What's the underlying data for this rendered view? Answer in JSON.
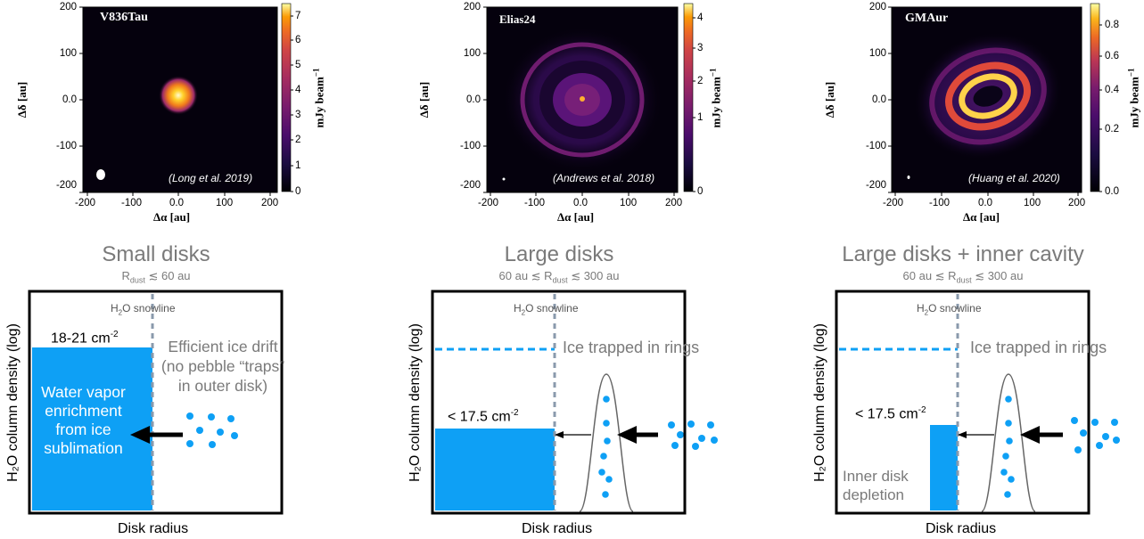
{
  "panels": [
    {
      "image_label": "V836Tau",
      "citation": "(Long et al. 2019)",
      "colorbar_ticks": [
        "7",
        "6",
        "5",
        "4",
        "3",
        "2",
        "1",
        "0"
      ],
      "colorbar_label": "mJy beam",
      "colorbar_exp": "−1",
      "x_ticks": [
        "-200",
        "-100",
        "0.0",
        "100",
        "200"
      ],
      "y_ticks": [
        "200",
        "100",
        "0.0",
        "-100",
        "-200"
      ],
      "x_label": "Δα [au]",
      "y_label": "Δδ [au]",
      "title": "Small disks",
      "subtitle": "R",
      "subtitle_sub": "dust",
      "subtitle_tail": " ≲ 60 au",
      "snowline_label": "H",
      "snowline_sub": "2",
      "snowline_tail": "O snowline",
      "density_label": "18-21 cm",
      "density_exp": "-2",
      "annotation_lines": [
        "Efficient ice drift",
        "(no pebble “traps”",
        "in outer disk)"
      ],
      "box_text_lines": [
        "Water vapor",
        "enrichment",
        "from ice",
        "sublimation"
      ],
      "y_axis_label": "H₂O column density (log)",
      "x_axis_label": "Disk radius"
    },
    {
      "image_label": "Elias24",
      "citation": "(Andrews et al. 2018)",
      "colorbar_ticks": [
        "4",
        "3",
        "2",
        "1",
        "0"
      ],
      "colorbar_label": "mJy beam",
      "colorbar_exp": "−1",
      "x_ticks": [
        "-200",
        "-100",
        "0.0",
        "100",
        "200"
      ],
      "y_ticks": [
        "200",
        "100",
        "0.0",
        "-100",
        "-200"
      ],
      "x_label": "Δα [au]",
      "y_label": "Δδ [au]",
      "title": "Large disks",
      "subtitle": "60 au ≲ R",
      "subtitle_sub": "dust",
      "subtitle_tail": " ≲ 300 au",
      "snowline_label": "H",
      "snowline_sub": "2",
      "snowline_tail": "O snowline",
      "density_label": "< 17.5 cm",
      "density_exp": "-2",
      "annotation_lines": [
        "Ice trapped in rings"
      ],
      "y_axis_label": "H₂O column density (log)",
      "x_axis_label": "Disk radius"
    },
    {
      "image_label": "GMAur",
      "citation": "(Huang et al. 2020)",
      "colorbar_ticks": [
        "0.8",
        "0.6",
        "0.4",
        "0.2",
        "0.0"
      ],
      "colorbar_label": "mJy beam",
      "colorbar_exp": "−1",
      "x_ticks": [
        "-200",
        "-100",
        "0.0",
        "100",
        "200"
      ],
      "y_ticks": [
        "200",
        "100",
        "0.0",
        "-100",
        "-200"
      ],
      "x_label": "Δα [au]",
      "y_label": "Δδ [au]",
      "title": "Large disks + inner cavity",
      "subtitle": "60 au ≲ R",
      "subtitle_sub": "dust",
      "subtitle_tail": " ≲ 300 au",
      "snowline_label": "H",
      "snowline_sub": "2",
      "snowline_tail": "O snowline",
      "density_label": "< 17.5 cm",
      "density_exp": "-2",
      "annotation_lines": [
        "Ice trapped in rings"
      ],
      "box_text_lines": [
        "Inner disk",
        "depletion"
      ],
      "y_axis_label": "H₂O column density (log)",
      "x_axis_label": "Disk radius"
    }
  ],
  "colors": {
    "water_blue": "#0ea0f5",
    "snowline_gray": "#8a9aac",
    "title_gray": "#7a7a7a",
    "image_bg": "#05010d"
  }
}
